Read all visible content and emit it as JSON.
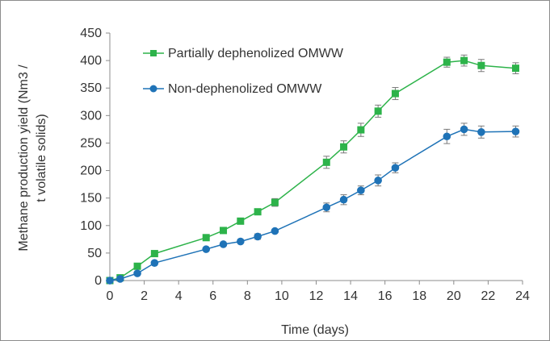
{
  "chart_data": {
    "type": "line",
    "xlabel": "Time (days)",
    "ylabel_line1": "Methane production yield (Nm3 /",
    "ylabel_line2": "t volatile solids)",
    "xlim": [
      0,
      24
    ],
    "ylim": [
      0,
      450
    ],
    "x_ticks": [
      "0",
      "2",
      "4",
      "6",
      "8",
      "10",
      "12",
      "14",
      "16",
      "18",
      "20",
      "22",
      "24"
    ],
    "y_ticks": [
      "0",
      "50",
      "100",
      "150",
      "200",
      "250",
      "300",
      "350",
      "400",
      "450"
    ],
    "grid": false,
    "legend_position": "top-left",
    "series": [
      {
        "name": "Partially dephenolized OMWW",
        "color": "#2db34a",
        "marker": "square",
        "x": [
          0,
          0.6,
          1.6,
          2.6,
          5.6,
          6.6,
          7.6,
          8.6,
          9.6,
          12.6,
          13.6,
          14.6,
          15.6,
          16.6,
          19.6,
          20.6,
          21.6,
          23.6
        ],
        "y": [
          0,
          5,
          26,
          49,
          78,
          91,
          108,
          125,
          142,
          215,
          243,
          274,
          308,
          340,
          397,
          400,
          391,
          386
        ],
        "error": [
          0,
          0,
          0,
          0,
          0,
          0,
          0,
          0,
          7,
          11,
          11,
          12,
          11,
          11,
          9,
          10,
          11,
          10
        ]
      },
      {
        "name": "Non-dephenolized OMWW",
        "color": "#1f73b7",
        "marker": "circle",
        "x": [
          0,
          0.6,
          1.6,
          2.6,
          5.6,
          6.6,
          7.6,
          8.6,
          9.6,
          12.6,
          13.6,
          14.6,
          15.6,
          16.6,
          19.6,
          20.6,
          21.6,
          23.6
        ],
        "y": [
          0,
          3,
          13,
          32,
          57,
          66,
          71,
          80,
          90,
          133,
          147,
          164,
          182,
          205,
          262,
          275,
          270,
          271
        ],
        "error": [
          0,
          0,
          0,
          0,
          0,
          0,
          0,
          5,
          0,
          8,
          9,
          8,
          10,
          9,
          13,
          11,
          11,
          10
        ]
      }
    ]
  }
}
